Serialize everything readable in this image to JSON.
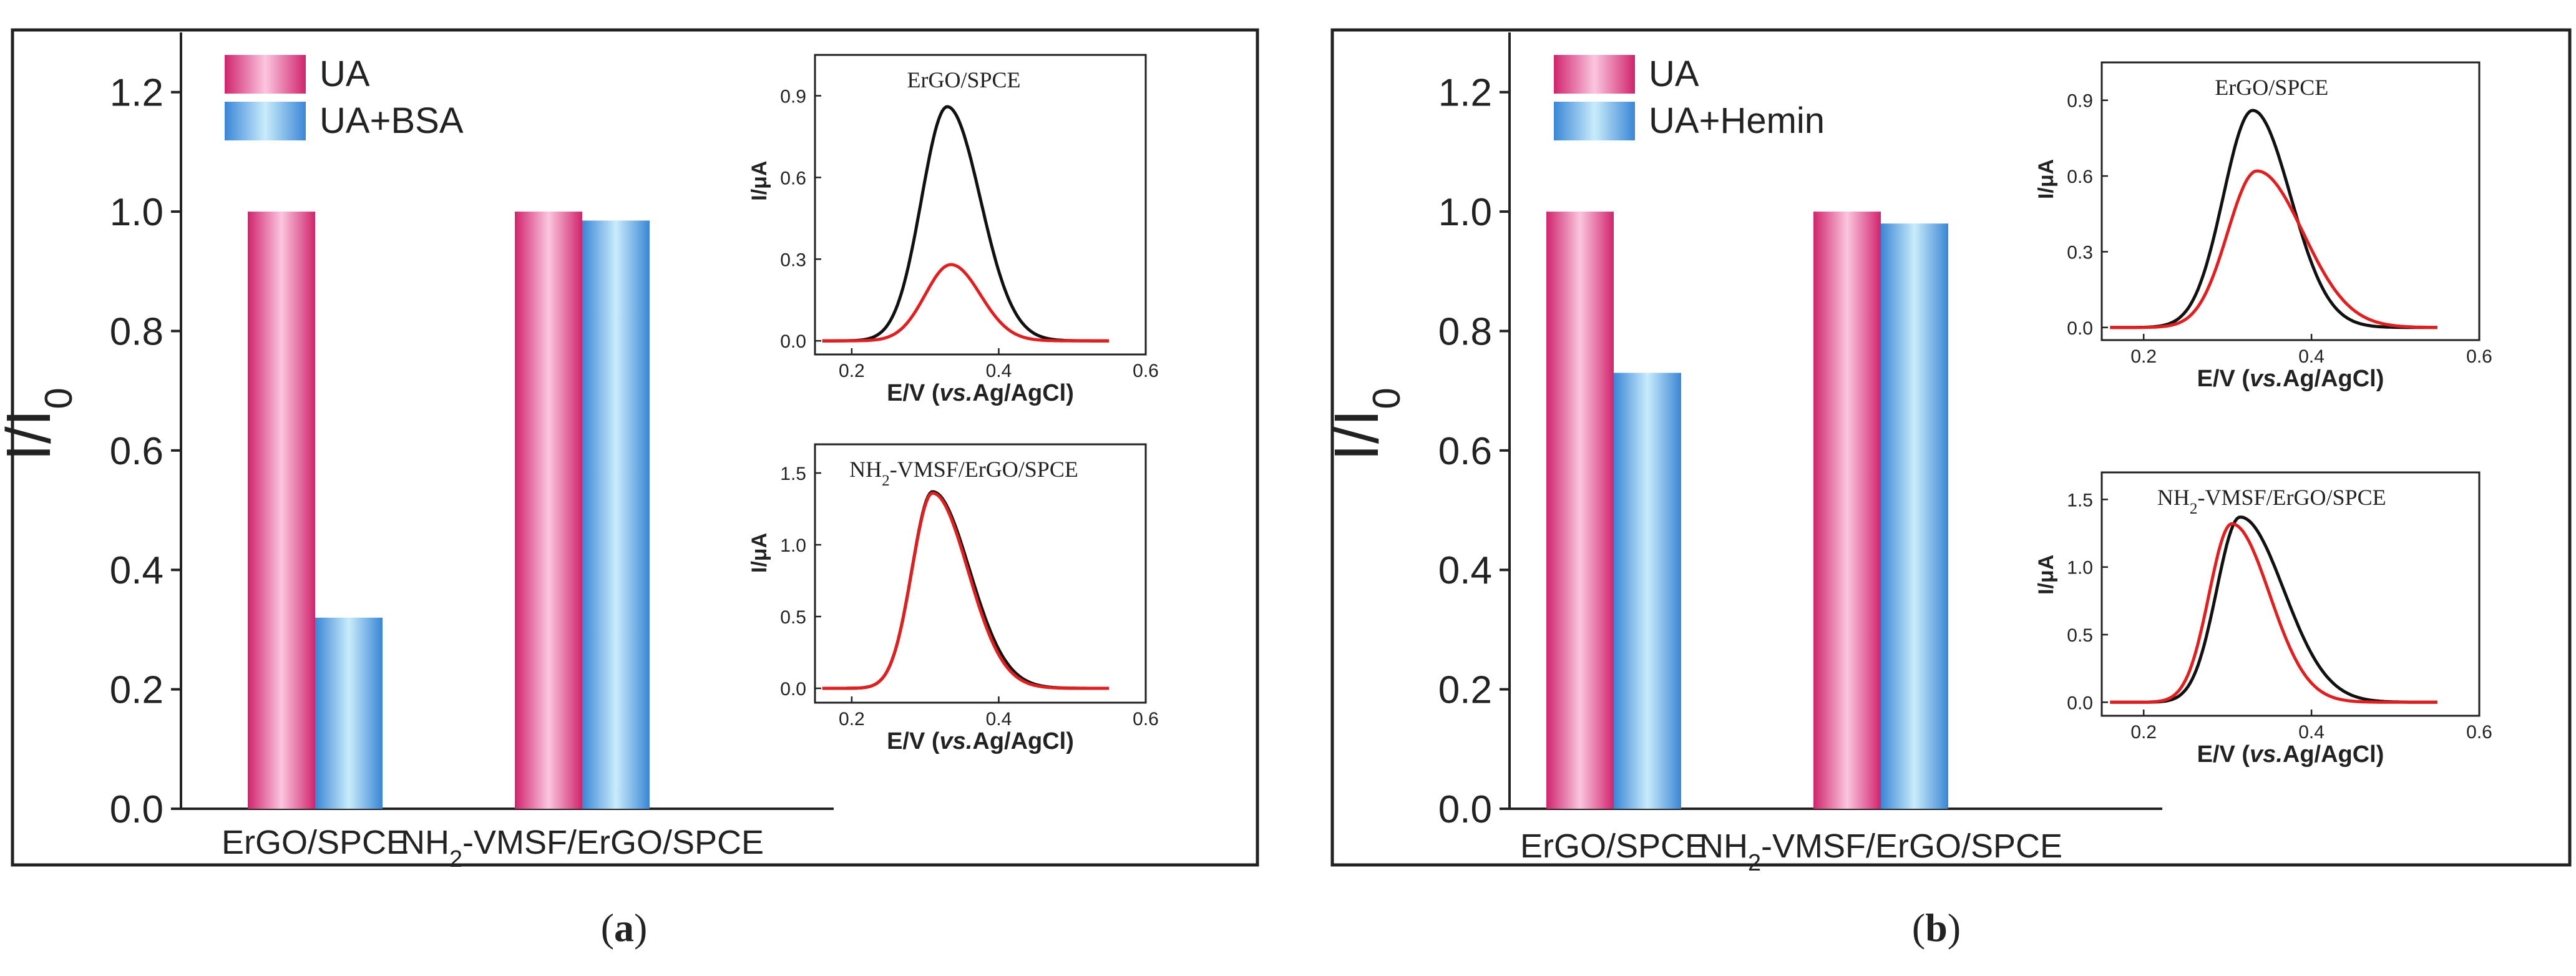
{
  "figure": {
    "panels": [
      {
        "caption_letter": "a"
      },
      {
        "caption_letter": "b"
      }
    ]
  },
  "chart_data": [
    {
      "type": "bar",
      "panel": "a",
      "title": "",
      "xlabel": "",
      "ylabel": "I/I0",
      "ylim": [
        0,
        1.3
      ],
      "yticks": [
        "0.0",
        "0.2",
        "0.4",
        "0.6",
        "0.8",
        "1.0",
        "1.2"
      ],
      "yticks_values": [
        0,
        0.2,
        0.4,
        0.6,
        0.8,
        1.0,
        1.2
      ],
      "categories": [
        "ErGO/SPCE",
        "NH2-VMSF/ErGO/SPCE"
      ],
      "series": [
        {
          "name": "UA",
          "values": [
            1.0,
            1.0
          ],
          "color": "#d81b6e"
        },
        {
          "name": "UA+BSA",
          "values": [
            0.32,
            0.985
          ],
          "color": "#3b8fd9"
        }
      ],
      "legend_position": "top-left",
      "insets": [
        {
          "type": "line",
          "title": "ErGO/SPCE",
          "xlabel_prefix": "E/V (",
          "xlabel_italic": "vs.",
          "xlabel_suffix": "Ag/AgCl)",
          "ylabel": "I/μA",
          "xlim": [
            0.15,
            0.6
          ],
          "ylim": [
            -0.05,
            1.05
          ],
          "xticks": [
            "0.2",
            "0.4",
            "0.6"
          ],
          "xticks_values": [
            0.2,
            0.4,
            0.6
          ],
          "yticks": [
            "0.0",
            "0.3",
            "0.6",
            "0.9"
          ],
          "yticks_values": [
            0.0,
            0.3,
            0.6,
            0.9
          ],
          "series": [
            {
              "color": "#111111",
              "peak_x": 0.33,
              "peak_y": 0.86,
              "sigma_left": 0.035,
              "sigma_right": 0.045,
              "x_range": [
                0.16,
                0.55
              ]
            },
            {
              "color": "#e02020",
              "peak_x": 0.335,
              "peak_y": 0.28,
              "sigma_left": 0.035,
              "sigma_right": 0.04,
              "x_range": [
                0.16,
                0.55
              ]
            }
          ]
        },
        {
          "type": "line",
          "title": "NH2-VMSF/ErGO/SPCE",
          "xlabel_prefix": "E/V (",
          "xlabel_italic": "vs.",
          "xlabel_suffix": "Ag/AgCl)",
          "ylabel": "I/μA",
          "xlim": [
            0.15,
            0.6
          ],
          "ylim": [
            -0.1,
            1.7
          ],
          "xticks": [
            "0.2",
            "0.4",
            "0.6"
          ],
          "xticks_values": [
            0.2,
            0.4,
            0.6
          ],
          "yticks": [
            "0.0",
            "0.5",
            "1.0",
            "1.5"
          ],
          "yticks_values": [
            0.0,
            0.5,
            1.0,
            1.5
          ],
          "series": [
            {
              "color": "#111111",
              "peak_x": 0.31,
              "peak_y": 1.37,
              "sigma_left": 0.028,
              "sigma_right": 0.05,
              "x_range": [
                0.16,
                0.55
              ]
            },
            {
              "color": "#e02020",
              "peak_x": 0.31,
              "peak_y": 1.36,
              "sigma_left": 0.028,
              "sigma_right": 0.048,
              "x_range": [
                0.16,
                0.55
              ]
            }
          ]
        }
      ]
    },
    {
      "type": "bar",
      "panel": "b",
      "title": "",
      "xlabel": "",
      "ylabel": "I/I0",
      "ylim": [
        0,
        1.3
      ],
      "yticks": [
        "0.0",
        "0.2",
        "0.4",
        "0.6",
        "0.8",
        "1.0",
        "1.2"
      ],
      "yticks_values": [
        0,
        0.2,
        0.4,
        0.6,
        0.8,
        1.0,
        1.2
      ],
      "categories": [
        "ErGO/SPCE",
        "NH2-VMSF/ErGO/SPCE"
      ],
      "series": [
        {
          "name": "UA",
          "values": [
            1.0,
            1.0
          ],
          "color": "#d81b6e"
        },
        {
          "name": "UA+Hemin",
          "values": [
            0.73,
            0.98
          ],
          "color": "#3b8fd9"
        }
      ],
      "legend_position": "top-left",
      "insets": [
        {
          "type": "line",
          "title": "ErGO/SPCE",
          "xlabel_prefix": "E/V (",
          "xlabel_italic": "vs.",
          "xlabel_suffix": "Ag/AgCl)",
          "ylabel": "I/μA",
          "xlim": [
            0.15,
            0.6
          ],
          "ylim": [
            -0.05,
            1.05
          ],
          "xticks": [
            "0.2",
            "0.4",
            "0.6"
          ],
          "xticks_values": [
            0.2,
            0.4,
            0.6
          ],
          "yticks": [
            "0.0",
            "0.3",
            "0.6",
            "0.9"
          ],
          "yticks_values": [
            0.0,
            0.3,
            0.6,
            0.9
          ],
          "series": [
            {
              "color": "#111111",
              "peak_x": 0.33,
              "peak_y": 0.86,
              "sigma_left": 0.035,
              "sigma_right": 0.045,
              "x_range": [
                0.16,
                0.55
              ]
            },
            {
              "color": "#e02020",
              "peak_x": 0.335,
              "peak_y": 0.62,
              "sigma_left": 0.035,
              "sigma_right": 0.055,
              "x_range": [
                0.16,
                0.55
              ]
            }
          ]
        },
        {
          "type": "line",
          "title": "NH2-VMSF/ErGO/SPCE",
          "xlabel_prefix": "E/V (",
          "xlabel_italic": "vs.",
          "xlabel_suffix": "Ag/AgCl)",
          "ylabel": "I/μA",
          "xlim": [
            0.15,
            0.6
          ],
          "ylim": [
            -0.1,
            1.7
          ],
          "xticks": [
            "0.2",
            "0.4",
            "0.6"
          ],
          "xticks_values": [
            0.2,
            0.4,
            0.6
          ],
          "yticks": [
            "0.0",
            "0.5",
            "1.0",
            "1.5"
          ],
          "yticks_values": [
            0.0,
            0.5,
            1.0,
            1.5
          ],
          "series": [
            {
              "color": "#111111",
              "peak_x": 0.315,
              "peak_y": 1.37,
              "sigma_left": 0.028,
              "sigma_right": 0.052,
              "x_range": [
                0.16,
                0.55
              ]
            },
            {
              "color": "#e02020",
              "peak_x": 0.305,
              "peak_y": 1.32,
              "sigma_left": 0.027,
              "sigma_right": 0.045,
              "x_range": [
                0.16,
                0.55
              ]
            }
          ]
        }
      ]
    }
  ]
}
